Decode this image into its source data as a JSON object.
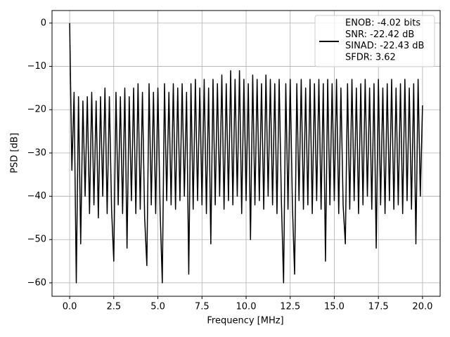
{
  "chart_data": {
    "type": "line",
    "xlabel": "Frequency [MHz]",
    "ylabel": "PSD [dB]",
    "xlim": [
      -1,
      21
    ],
    "ylim": [
      -63.1,
      2.9
    ],
    "xticks": [
      {
        "value": 0,
        "label": "0.0"
      },
      2.5,
      {
        "value": 5,
        "label": "5.0"
      },
      7.5,
      {
        "value": 10,
        "label": "10.0"
      },
      12.5,
      {
        "value": 15,
        "label": "15.0"
      },
      17.5,
      {
        "value": 20,
        "label": "20.0"
      }
    ],
    "yticks": [
      0,
      {
        "value": -10,
        "label": "−10"
      },
      {
        "value": -20,
        "label": "−20"
      },
      {
        "value": -30,
        "label": "−30"
      },
      {
        "value": -40,
        "label": "−40"
      },
      {
        "value": -50,
        "label": "−50"
      },
      {
        "value": -60,
        "label": "−60"
      }
    ],
    "grid": true,
    "legend": "upper right",
    "x": [
      0,
      0.125,
      0.25,
      0.375,
      0.5,
      0.625,
      0.75,
      0.875,
      1,
      1.125,
      1.25,
      1.375,
      1.5,
      1.625,
      1.75,
      1.875,
      2,
      2.125,
      2.25,
      2.375,
      2.5,
      2.625,
      2.75,
      2.875,
      3,
      3.125,
      3.25,
      3.375,
      3.5,
      3.625,
      3.75,
      3.875,
      4,
      4.125,
      4.25,
      4.375,
      4.5,
      4.625,
      4.75,
      4.875,
      5,
      5.125,
      5.25,
      5.375,
      5.5,
      5.625,
      5.75,
      5.875,
      6,
      6.125,
      6.25,
      6.375,
      6.5,
      6.625,
      6.75,
      6.875,
      7,
      7.125,
      7.25,
      7.375,
      7.5,
      7.625,
      7.75,
      7.875,
      8,
      8.125,
      8.25,
      8.375,
      8.5,
      8.625,
      8.75,
      8.875,
      9,
      9.125,
      9.25,
      9.375,
      9.5,
      9.625,
      9.75,
      9.875,
      10,
      10.125,
      10.25,
      10.375,
      10.5,
      10.625,
      10.75,
      10.875,
      11,
      11.125,
      11.25,
      11.375,
      11.5,
      11.625,
      11.75,
      11.875,
      12,
      12.125,
      12.25,
      12.375,
      12.5,
      12.625,
      12.75,
      12.875,
      13,
      13.125,
      13.25,
      13.375,
      13.5,
      13.625,
      13.75,
      13.875,
      14,
      14.125,
      14.25,
      14.375,
      14.5,
      14.625,
      14.75,
      14.875,
      15,
      15.125,
      15.25,
      15.375,
      15.5,
      15.625,
      15.75,
      15.875,
      16,
      16.125,
      16.25,
      16.375,
      16.5,
      16.625,
      16.75,
      16.875,
      17,
      17.125,
      17.25,
      17.375,
      17.5,
      17.625,
      17.75,
      17.875,
      18,
      18.125,
      18.25,
      18.375,
      18.5,
      18.625,
      18.75,
      18.875,
      19,
      19.125,
      19.25,
      19.375,
      19.5,
      19.625,
      19.75,
      19.875,
      20
    ],
    "series": [
      {
        "name": [
          "ENOB: -4.02 bits",
          "SNR: -22.42 dB",
          "SINAD: -22.43 dB",
          "SFDR: 3.62"
        ],
        "color": "#000000",
        "values": [
          0,
          -34,
          -16,
          -60,
          -17,
          -51,
          -18,
          -40,
          -17,
          -44,
          -16,
          -42,
          -18,
          -45,
          -17,
          -40,
          -15,
          -44,
          -17,
          -43,
          -55,
          -16,
          -42,
          -17,
          -44,
          -15,
          -52,
          -17,
          -41,
          -15,
          -44,
          -14,
          -43,
          -16,
          -45,
          -56,
          -14,
          -42,
          -16,
          -44,
          -15,
          -43,
          -60,
          -14,
          -41,
          -16,
          -42,
          -14,
          -43,
          -15,
          -41,
          -14,
          -40,
          -16,
          -58,
          -14,
          -43,
          -13,
          -41,
          -15,
          -42,
          -13,
          -44,
          -15,
          -51,
          -13,
          -42,
          -14,
          -40,
          -12,
          -43,
          -14,
          -41,
          -11,
          -42,
          -13,
          -40,
          -11,
          -44,
          -13,
          -41,
          -14,
          -50,
          -12,
          -42,
          -13,
          -41,
          -14,
          -43,
          -12,
          -40,
          -13,
          -42,
          -14,
          -44,
          -13,
          -41,
          -60,
          -14,
          -43,
          -13,
          -42,
          -58,
          -14,
          -41,
          -13,
          -43,
          -15,
          -42,
          -13,
          -44,
          -14,
          -41,
          -13,
          -43,
          -14,
          -55,
          -13,
          -42,
          -14,
          -41,
          -13,
          -44,
          -15,
          -42,
          -51,
          -14,
          -43,
          -13,
          -41,
          -15,
          -44,
          -14,
          -42,
          -13,
          -40,
          -15,
          -43,
          -14,
          -52,
          -13,
          -42,
          -15,
          -44,
          -14,
          -41,
          -13,
          -43,
          -15,
          -42,
          -14,
          -44,
          -13,
          -41,
          -15,
          -43,
          -14,
          -51,
          -13,
          -40,
          -19
        ]
      }
    ]
  }
}
